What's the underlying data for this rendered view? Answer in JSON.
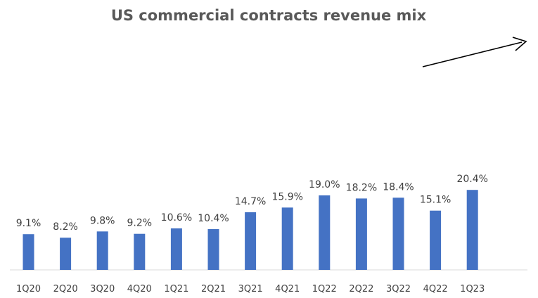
{
  "chart_data": {
    "type": "bar",
    "title": "US commercial contracts revenue mix",
    "xlabel": "",
    "ylabel": "",
    "categories": [
      "1Q20",
      "2Q20",
      "3Q20",
      "4Q20",
      "1Q21",
      "2Q21",
      "3Q21",
      "4Q21",
      "1Q22",
      "2Q22",
      "3Q22",
      "4Q22",
      "1Q23"
    ],
    "values": [
      9.1,
      8.2,
      9.8,
      9.2,
      10.6,
      10.4,
      14.7,
      15.9,
      19.0,
      18.2,
      18.4,
      15.1,
      20.4
    ],
    "value_labels": [
      "9.1%",
      "8.2%",
      "9.8%",
      "9.2%",
      "10.6%",
      "10.4%",
      "14.7%",
      "15.9%",
      "19.0%",
      "18.2%",
      "18.4%",
      "15.1%",
      "20.4%"
    ],
    "ylim": [
      0,
      26
    ],
    "grid": false,
    "legend": "none",
    "bar_color": "#4472C4",
    "axis_color": "#D9D9D9",
    "annotation": "upward-trend-arrow"
  }
}
